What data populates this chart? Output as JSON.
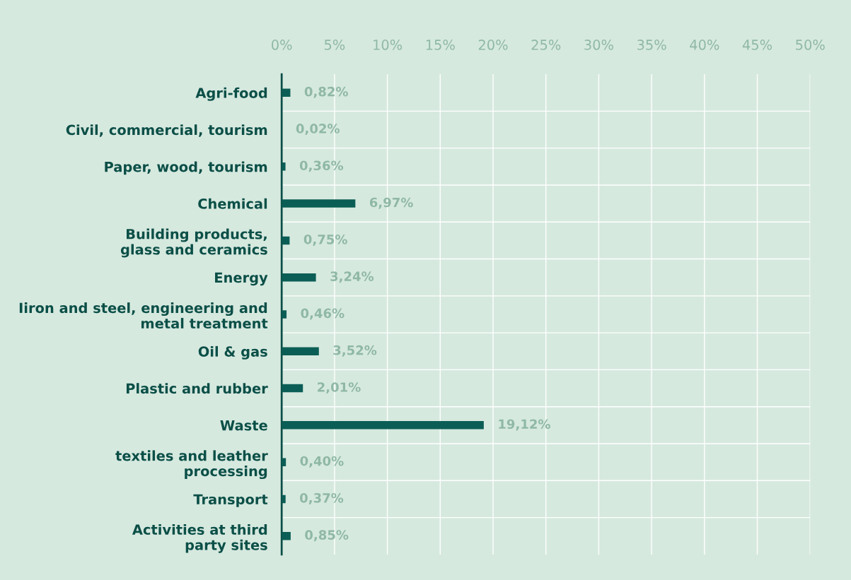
{
  "chart_data": {
    "type": "bar",
    "orientation": "horizontal",
    "categories": [
      "Agri-food",
      "Civil, commercial, tourism",
      "Paper, wood, tourism",
      "Chemical",
      "Building products,\nglass and ceramics",
      "Energy",
      "Iiron and steel, engineering and\nmetal treatment",
      "Oil & gas",
      "Plastic and rubber",
      "Waste",
      "textiles and leather\nprocessing",
      "Transport",
      "Activities at third\nparty sites"
    ],
    "values": [
      0.82,
      0.02,
      0.36,
      6.97,
      0.75,
      3.24,
      0.46,
      3.52,
      2.01,
      19.12,
      0.4,
      0.37,
      0.85
    ],
    "value_labels": [
      "0,82%",
      "0,02%",
      "0,36%",
      "6,97%",
      "0,75%",
      "3,24%",
      "0,46%",
      "3,52%",
      "2,01%",
      "19,12%",
      "0,40%",
      "0,37%",
      "0,85%"
    ],
    "color": "#0b5e55",
    "xlim": [
      0,
      50
    ],
    "xticks": [
      {
        "value": 0,
        "label": "0%"
      },
      {
        "value": 5,
        "label": "5%"
      },
      {
        "value": 10,
        "label": "10%"
      },
      {
        "value": 15,
        "label": "15%"
      },
      {
        "value": 20,
        "label": "20%"
      },
      {
        "value": 25,
        "label": "25%"
      },
      {
        "value": 30,
        "label": "30%"
      },
      {
        "value": 35,
        "label": "35%"
      },
      {
        "value": 40,
        "label": "40%"
      },
      {
        "value": 45,
        "label": "45%"
      },
      {
        "value": 50,
        "label": "50%"
      }
    ],
    "grid": true,
    "legend": false
  }
}
